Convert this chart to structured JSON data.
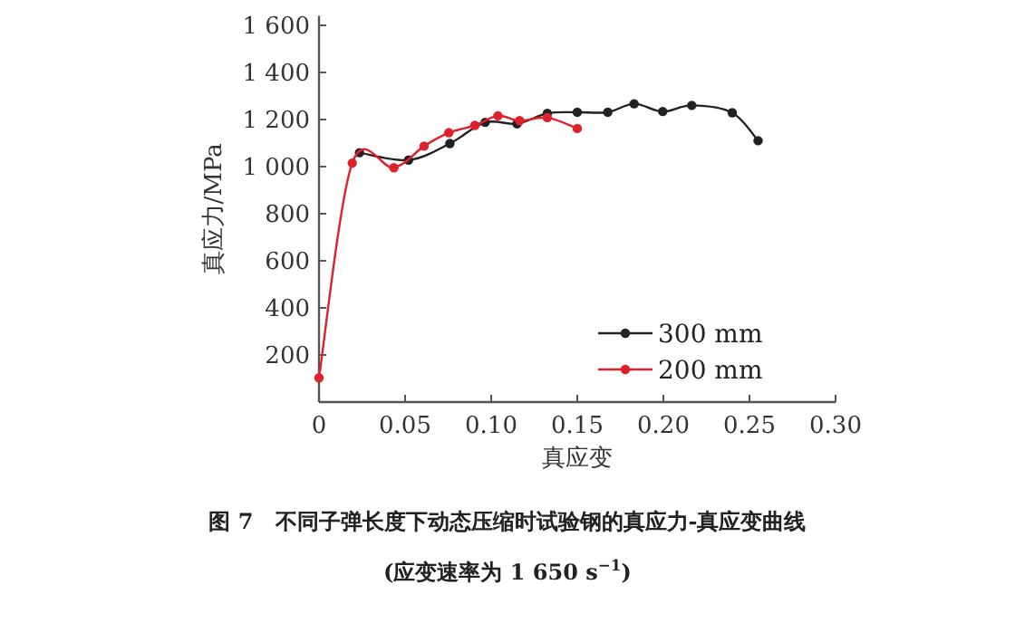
{
  "chart_data": {
    "type": "line",
    "xlabel": "真应变",
    "ylabel": "真应力/MPa",
    "annotations": [
      "图 7　不同子弹长度下动态压缩时试验钢的真应力-真应变曲线",
      "(应变速率为 1 650 s$^{−1}$)"
    ],
    "xlim": [
      0,
      0.3
    ],
    "xticks": [
      {
        "value": 0,
        "label": "0"
      },
      {
        "value": 0.05,
        "label": "0.05"
      },
      {
        "value": 0.1,
        "label": "0.10"
      },
      {
        "value": 0.15,
        "label": "0.15"
      },
      {
        "value": 0.2,
        "label": "0.20"
      },
      {
        "value": 0.25,
        "label": "0.25"
      },
      {
        "value": 0.3,
        "label": "0.30"
      }
    ],
    "ylim": [
      0,
      1640
    ],
    "yticks": [
      200,
      400,
      600,
      800,
      {
        "value": 1000,
        "label": "1 000"
      },
      {
        "value": 1200,
        "label": "1 200"
      },
      {
        "value": 1400,
        "label": "1 400"
      },
      {
        "value": 1600,
        "label": "1 600"
      }
    ],
    "grid": false,
    "legend": "bottom right",
    "marker": "circle",
    "line_style": "solid",
    "series": [
      {
        "name": "300 mm",
        "color": "#222222",
        "x": [
          0.0235,
          0.052,
          0.076,
          0.0965,
          0.115,
          0.1326,
          0.15,
          0.1677,
          0.183,
          0.1996,
          0.2165,
          0.24,
          0.255
        ],
        "values": [
          1059,
          1028,
          1098,
          1188,
          1182,
          1226,
          1231,
          1231,
          1267,
          1234,
          1260,
          1229,
          1110
        ]
      },
      {
        "name": "200 mm",
        "color": "#e0202a",
        "x": [
          0,
          0.0193,
          0.0435,
          0.061,
          0.0754,
          0.0905,
          0.1039,
          0.1165,
          0.1326,
          0.15
        ],
        "values": [
          103,
          1015,
          995,
          1087,
          1144,
          1175,
          1216,
          1195,
          1208,
          1162
        ]
      }
    ]
  }
}
